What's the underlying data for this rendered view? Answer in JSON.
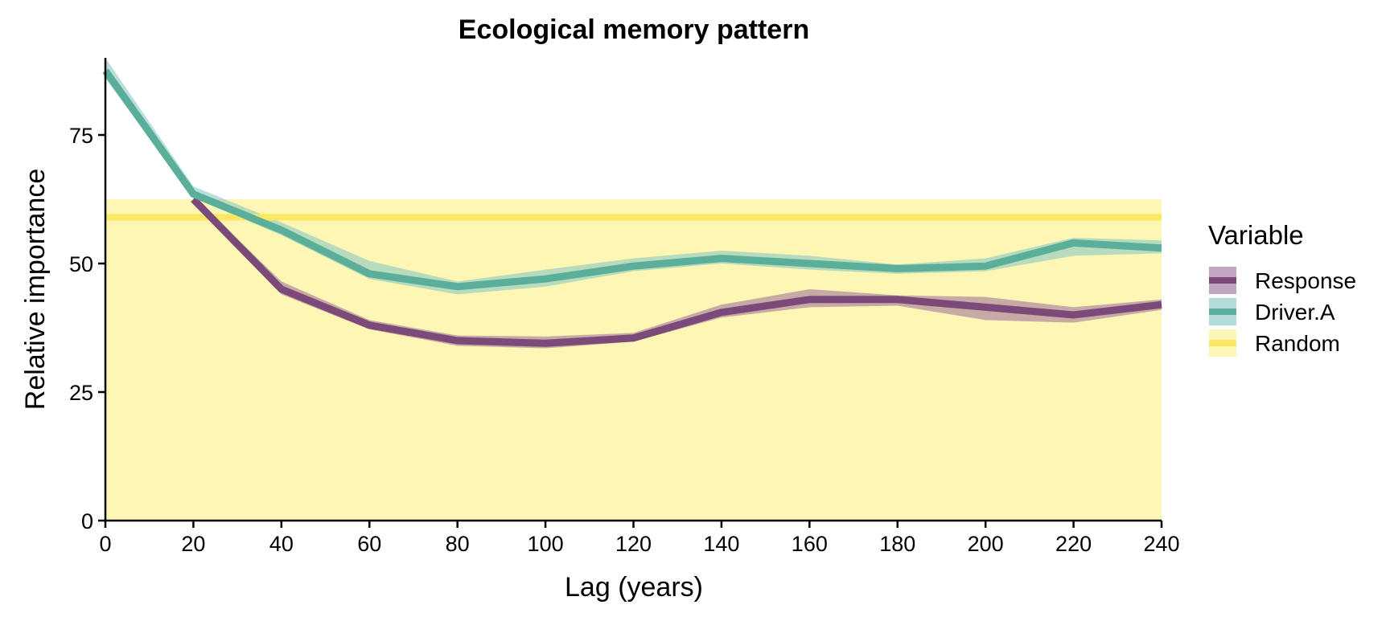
{
  "chart_data": {
    "type": "line",
    "title": "Ecological memory pattern",
    "xlabel": "Lag (years)",
    "ylabel": "Relative importance",
    "x": [
      0,
      20,
      40,
      60,
      80,
      100,
      120,
      140,
      160,
      180,
      200,
      220,
      240
    ],
    "xticks": [
      "0",
      "20",
      "40",
      "60",
      "80",
      "100",
      "120",
      "140",
      "160",
      "180",
      "200",
      "220",
      "240"
    ],
    "yticks": [
      "0",
      "25",
      "50",
      "75"
    ],
    "xlim": [
      0,
      240
    ],
    "ylim": [
      0,
      90
    ],
    "grid": false,
    "legend": {
      "title": "Variable",
      "placement": "right"
    },
    "series": [
      {
        "name": "Response",
        "color": "#7b4a78",
        "ribbon_color": "#9a6a98",
        "x": [
          20,
          40,
          60,
          80,
          100,
          120,
          140,
          160,
          180,
          200,
          220,
          240
        ],
        "values": [
          62.5,
          45,
          38,
          35,
          34.5,
          35.5,
          40.5,
          43,
          43,
          41.5,
          40,
          42
        ],
        "lower": [
          62,
          44,
          37.2,
          34,
          33.5,
          34.8,
          39.5,
          41.5,
          41.8,
          39,
          38.5,
          41
        ],
        "upper": [
          63,
          46.5,
          39,
          36,
          35.8,
          36.5,
          42,
          45,
          43.8,
          43.5,
          41.5,
          43
        ]
      },
      {
        "name": "Driver.A",
        "color": "#5aae9a",
        "ribbon_color": "#7fc4c2",
        "x": [
          0,
          20,
          40,
          60,
          80,
          100,
          120,
          140,
          160,
          180,
          200,
          220,
          240
        ],
        "values": [
          87.5,
          63.5,
          56.5,
          48,
          45.5,
          47,
          49.5,
          51,
          50,
          49,
          49.5,
          54,
          53
        ],
        "lower": [
          86,
          62.8,
          55.5,
          47,
          44,
          45.5,
          48.5,
          50,
          48.8,
          48,
          48.5,
          51.5,
          52
        ],
        "upper": [
          90,
          65,
          58,
          50.5,
          46.5,
          48.8,
          51,
          52.5,
          51.5,
          49.8,
          51,
          55,
          54.5
        ]
      },
      {
        "name": "Random",
        "color": "#fbe862",
        "ribbon_color": "#fdf6b5",
        "x": [
          0,
          240
        ],
        "values": [
          59,
          59
        ],
        "lower": [
          0,
          0
        ],
        "upper": [
          62.5,
          62.5
        ]
      }
    ]
  }
}
